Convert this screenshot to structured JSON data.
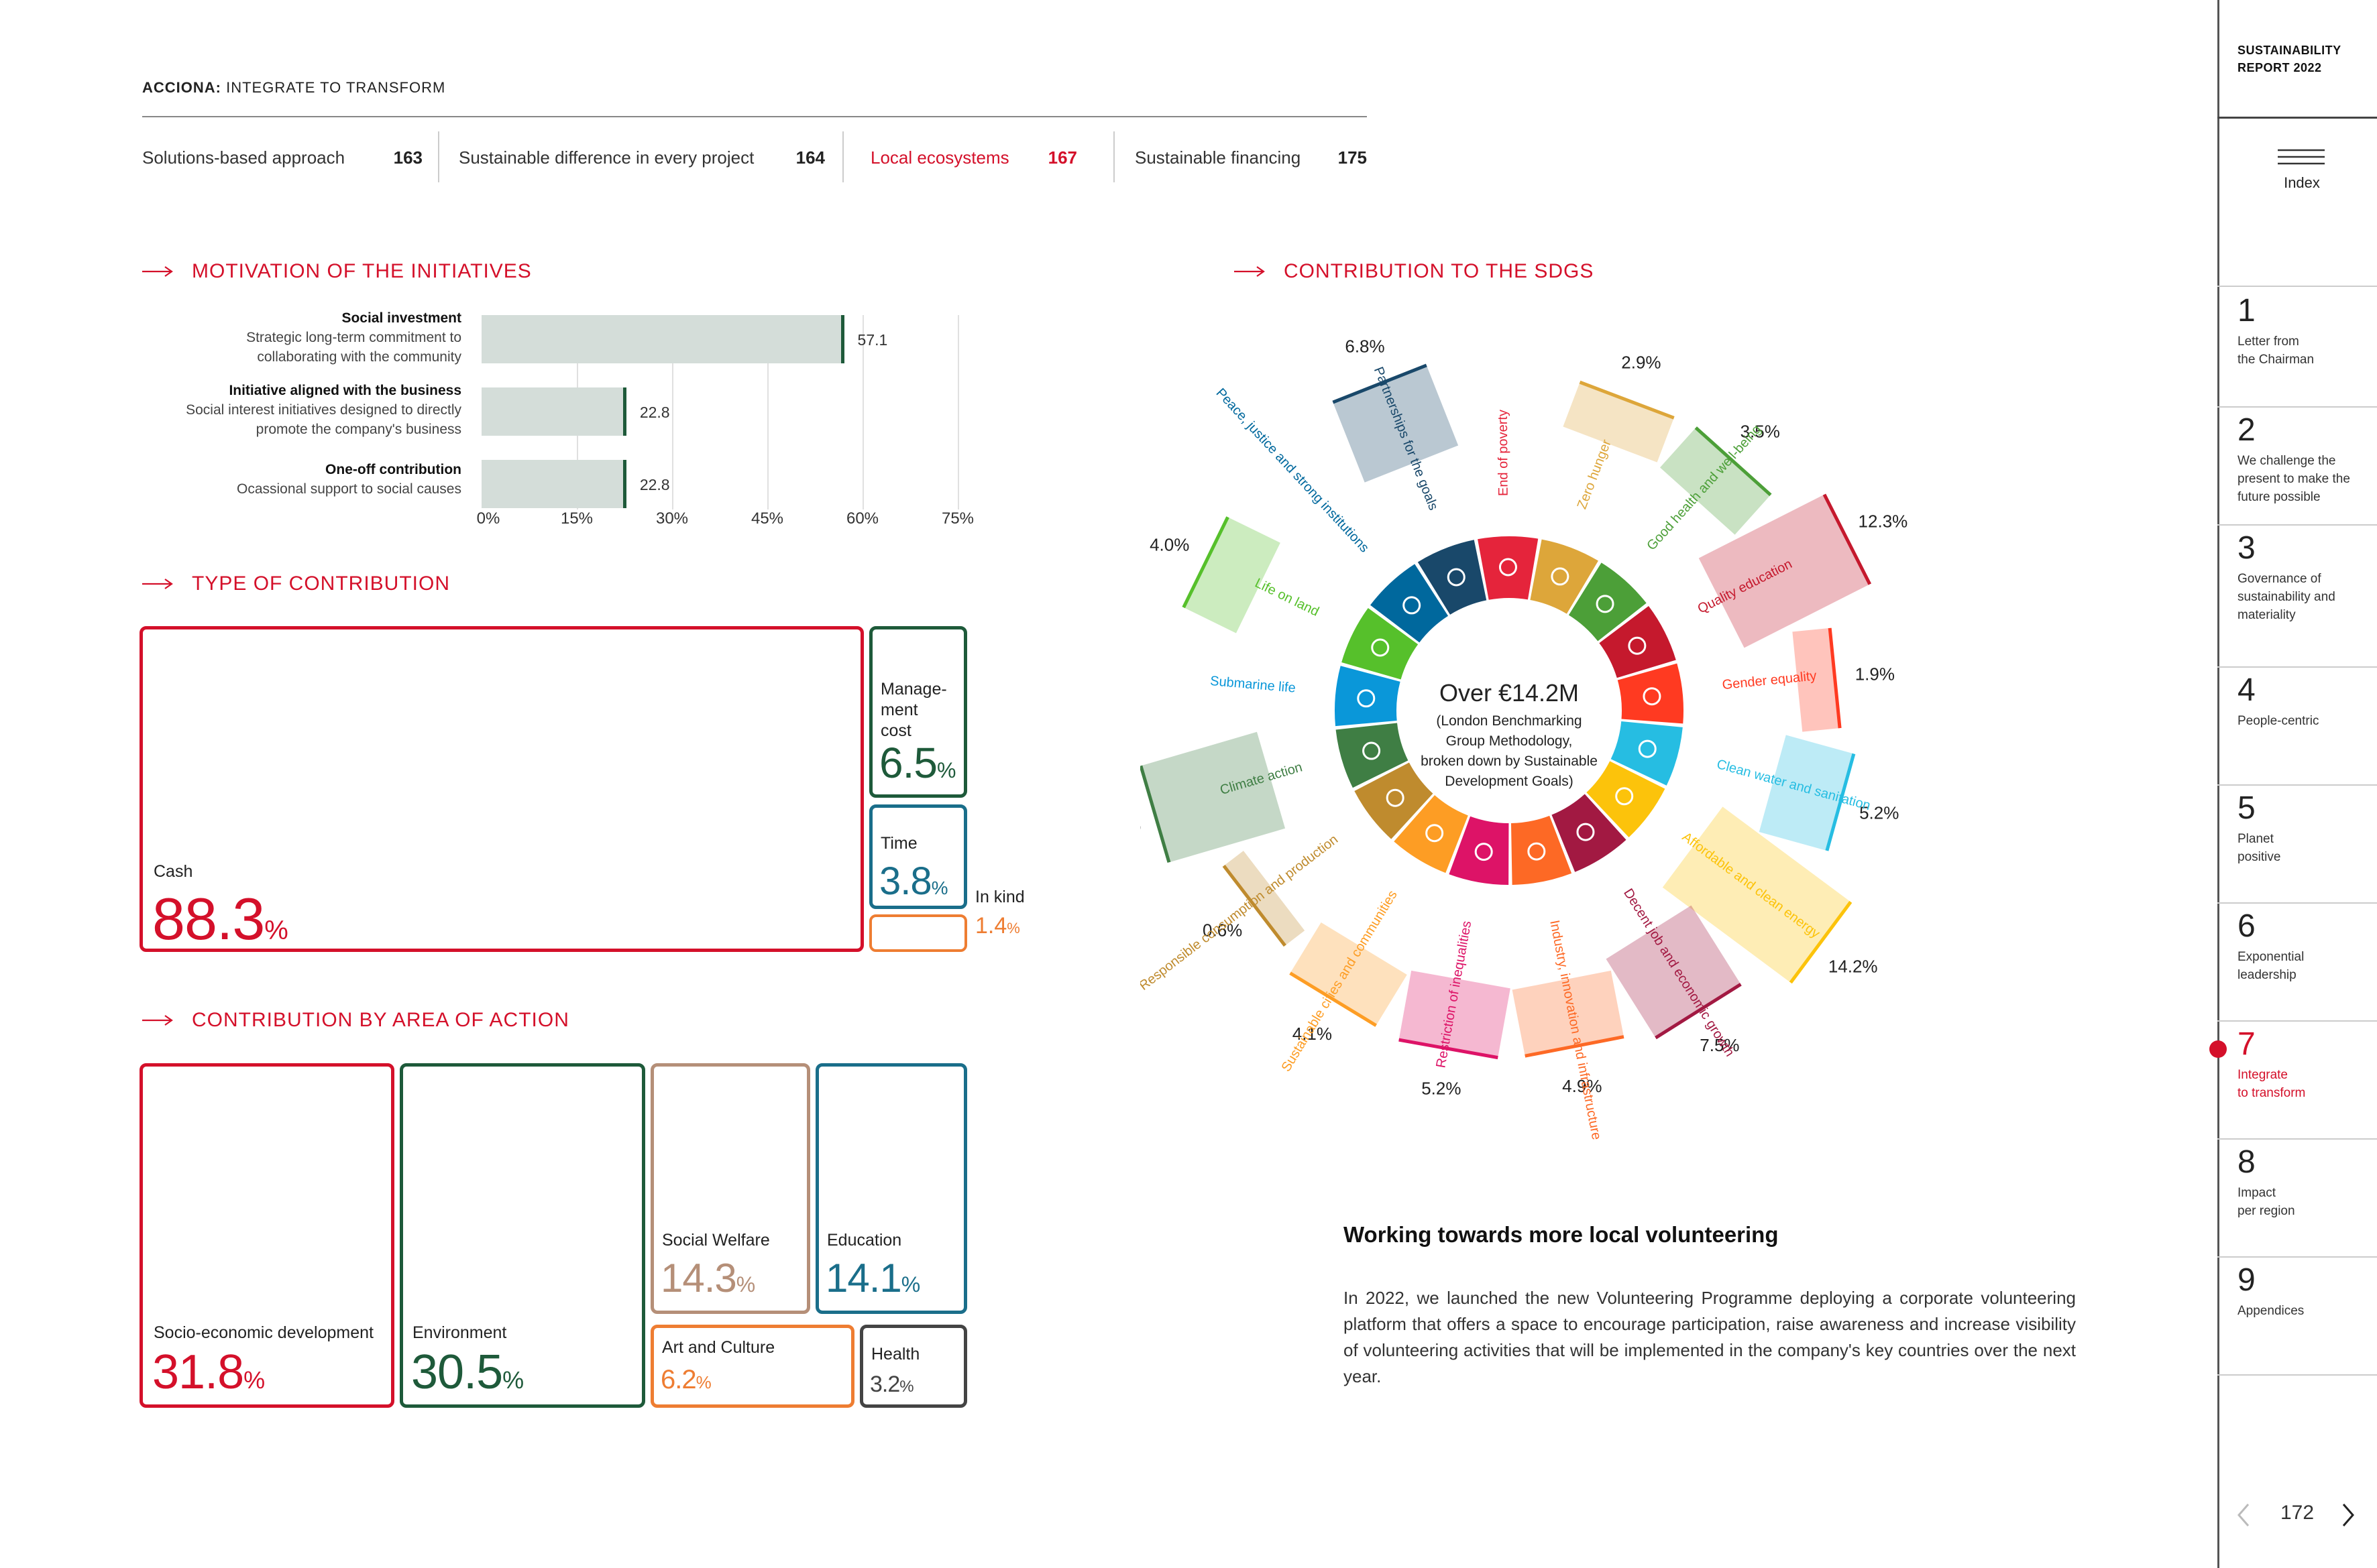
{
  "header": {
    "brand_bold": "ACCIONA:",
    "brand_rest": " INTEGRATE TO TRANSFORM"
  },
  "topnav": [
    {
      "label": "Solutions-based approach",
      "page": "163"
    },
    {
      "label": "Sustainable difference in every project",
      "page": "164"
    },
    {
      "label": "Local ecosystems",
      "page": "167"
    },
    {
      "label": "Sustainable financing",
      "page": "175"
    }
  ],
  "motivation": {
    "title": "MOTIVATION OF THE INITIATIVES",
    "items": [
      {
        "name": "Social investment",
        "desc1": "Strategic long-term commitment to",
        "desc2": "collaborating with the community",
        "value": "57.1"
      },
      {
        "name": "Initiative aligned with the business",
        "desc1": "Social interest initiatives designed to directly",
        "desc2": "promote the company's business",
        "value": "22.8"
      },
      {
        "name": "One-off contribution",
        "desc1": "Ocassional support to social causes",
        "desc2": "",
        "value": "22.8"
      }
    ],
    "ticks": [
      "0%",
      "15%",
      "30%",
      "45%",
      "60%",
      "75%"
    ]
  },
  "chart_data": {
    "type": "bar",
    "categories": [
      "Social investment",
      "Initiative aligned with the business",
      "One-off contribution"
    ],
    "values": [
      57.1,
      22.8,
      22.8
    ],
    "xlim": [
      0,
      75
    ],
    "title": "MOTIVATION OF THE INITIATIVES"
  },
  "contribution_type": {
    "title": "TYPE OF CONTRIBUTION",
    "cash": {
      "label": "Cash",
      "value": "88.3",
      "unit": "%",
      "color": "#d4102a"
    },
    "mgmt": {
      "label": "Manage-\nment\ncost",
      "value": "6.5",
      "unit": "%",
      "color": "#1e5a3a"
    },
    "time": {
      "label": "Time",
      "value": "3.8",
      "unit": "%",
      "color": "#1a6e8a"
    },
    "inkind": {
      "label": "In kind",
      "value": "1.4",
      "unit": "%",
      "color": "#ee7d32"
    }
  },
  "area_action": {
    "title": "CONTRIBUTION BY AREA OF ACTION",
    "socio": {
      "label": "Socio-economic development",
      "value": "31.8",
      "unit": "%",
      "color": "#d4102a"
    },
    "env": {
      "label": "Environment",
      "value": "30.5",
      "unit": "%",
      "color": "#1e5a3a"
    },
    "welfare": {
      "label": "Social Welfare",
      "value": "14.3",
      "unit": "%",
      "color": "#b58f78"
    },
    "edu": {
      "label": "Education",
      "value": "14.1",
      "unit": "%",
      "color": "#1a6e8a"
    },
    "art": {
      "label": "Art and Culture",
      "value": "6.2",
      "unit": "%",
      "color": "#ee7d32"
    },
    "health": {
      "label": "Health",
      "value": "3.2",
      "unit": "%",
      "color": "#444444"
    }
  },
  "sdg": {
    "title": "CONTRIBUTION TO THE SDGS",
    "center_big": "Over €14.2M",
    "center_l1": "(London Benchmarking",
    "center_l2": "Group Methodology,",
    "center_l3": "broken down by Sustainable",
    "center_l4": "Development Goals)",
    "goals": [
      {
        "name": "End of poverty",
        "pct": "",
        "color": "#e5243b"
      },
      {
        "name": "Zero hunger",
        "pct": "2.9%",
        "color": "#dda63a"
      },
      {
        "name": "Good health and well-being",
        "pct": "3.5%",
        "color": "#4c9f38"
      },
      {
        "name": "Quality education",
        "pct": "12.3%",
        "color": "#c5192d"
      },
      {
        "name": "Gender equality",
        "pct": "1.9%",
        "color": "#ff3a21"
      },
      {
        "name": "Clean water and sanitation",
        "pct": "5.2%",
        "color": "#26bde2"
      },
      {
        "name": "Affordable and clean energy",
        "pct": "14.2%",
        "color": "#fcc30b"
      },
      {
        "name": "Decent job and economic growth",
        "pct": "7.5%",
        "color": "#a21942"
      },
      {
        "name": "Industry, innovation and infrastructure",
        "pct": "4.9%",
        "color": "#fd6925"
      },
      {
        "name": "Restriction of inequalities",
        "pct": "5.2%",
        "color": "#dd1367"
      },
      {
        "name": "Sustainable cities and communities",
        "pct": "4.1%",
        "color": "#fd9d24"
      },
      {
        "name": "Responsible consumption and production",
        "pct": "0.6%",
        "color": "#bf8b2e"
      },
      {
        "name": "Climate action",
        "pct": "10.3%",
        "color": "#3f7e44"
      },
      {
        "name": "Submarine life",
        "pct": "",
        "color": "#0a97d9"
      },
      {
        "name": "Life on land",
        "pct": "4.0%",
        "color": "#56c02b"
      },
      {
        "name": "Peace, justice and strong institutions",
        "pct": "",
        "color": "#00689d"
      },
      {
        "name": "Partnerships for the goals",
        "pct": "6.8%",
        "color": "#19486a"
      }
    ]
  },
  "volunteering": {
    "title": "Working towards more local volunteering",
    "body": "In 2022, we launched the new Volunteering Programme deploying a corporate volunteering platform that offers a space to encourage participation, raise awareness and increase visibility of volunteering activities that will be implemented in the company's key countries over the next year."
  },
  "sidebar": {
    "report_l1": "SUSTAINABILITY",
    "report_l2": "REPORT 2022",
    "index_label": "Index",
    "chapters": [
      {
        "n": "1",
        "t": "Letter from\nthe Chairman"
      },
      {
        "n": "2",
        "t": "We challenge the\npresent to make the\nfuture possible"
      },
      {
        "n": "3",
        "t": "Governance of\nsustainability and\nmateriality"
      },
      {
        "n": "4",
        "t": "People-centric"
      },
      {
        "n": "5",
        "t": "Planet\npositive"
      },
      {
        "n": "6",
        "t": "Exponential\nleadership"
      },
      {
        "n": "7",
        "t": "Integrate\nto transform"
      },
      {
        "n": "8",
        "t": "Impact\nper region"
      },
      {
        "n": "9",
        "t": "Appendices"
      }
    ],
    "page": "172"
  }
}
